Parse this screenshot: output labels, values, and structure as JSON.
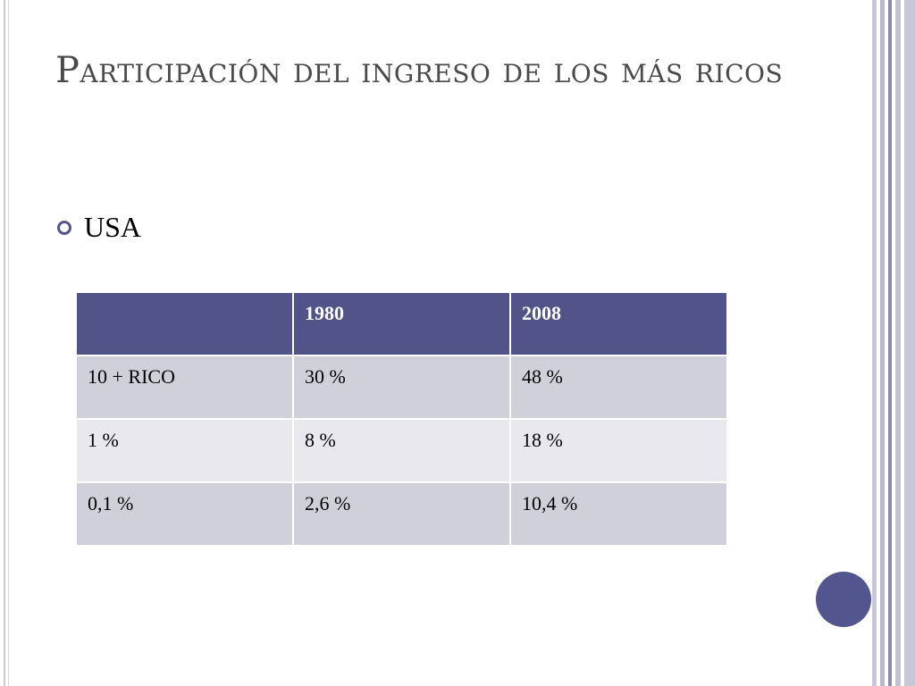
{
  "slide": {
    "title": "Participación del ingreso de los más ricos",
    "bullet": "USA"
  },
  "table": {
    "headers": [
      "",
      "1980",
      "2008"
    ],
    "rows": [
      [
        "10 + RICO",
        "30 %",
        "48 %"
      ],
      [
        "1 %",
        "8 %",
        "18 %"
      ],
      [
        "0,1 %",
        "2,6 %",
        "10,4 %"
      ]
    ]
  },
  "colors": {
    "header_bg": "#525388",
    "row_dark": "#d0d0da",
    "row_light": "#e8e8ee",
    "accent_circle": "#53558f"
  }
}
